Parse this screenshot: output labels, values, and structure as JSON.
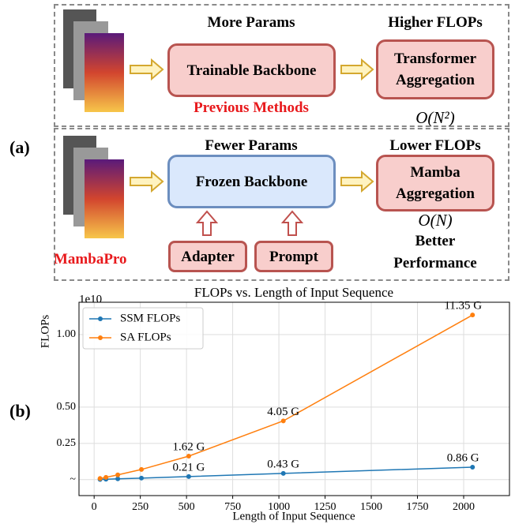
{
  "figure": {
    "panel_a": {
      "label": "(a)",
      "top": {
        "header_left": "More Params",
        "header_right": "Higher FLOPs",
        "backbone": "Trainable Backbone",
        "aggregation": "Transformer Aggregation",
        "caption": "Previous Methods",
        "complexity": "O(N²)"
      },
      "bottom": {
        "header_left": "Fewer Params",
        "header_right": "Lower FLOPs",
        "backbone": "Frozen Backbone",
        "aggregation": "Mamba Aggregation",
        "complexity": "O(N)",
        "note": "Better Performance",
        "adapter": "Adapter",
        "prompt": "Prompt",
        "name": "MambaPro"
      }
    },
    "panel_b": {
      "label": "(b)"
    }
  },
  "chart_data": {
    "type": "line",
    "title": "FLOPs vs. Length of Input Sequence",
    "x_label": "Length of Input Sequence",
    "y_label": "FLOPs",
    "y_multiplier": "1e10",
    "x": [
      32,
      64,
      128,
      256,
      512,
      1024,
      2048
    ],
    "series": [
      {
        "name": "SSM FLOPs",
        "color": "#1f77b4",
        "values": [
          13500000,
          27000000,
          54000000,
          107000000,
          210000000,
          430000000,
          860000000
        ],
        "value_labels": [
          null,
          null,
          null,
          null,
          "0.21 G",
          "0.43 G",
          "0.86 G"
        ]
      },
      {
        "name": "SA FLOPs",
        "color": "#ff7f0e",
        "values": [
          80000000,
          160000000,
          330000000,
          700000000,
          1620000000,
          4050000000,
          11350000000
        ],
        "value_labels": [
          null,
          null,
          null,
          null,
          "1.62 G",
          "4.05 G",
          "11.35 G"
        ]
      }
    ],
    "xlim": [
      -82,
      2248
    ],
    "xticks": [
      0,
      250,
      500,
      750,
      1000,
      1250,
      1500,
      1750,
      2000
    ],
    "ylim": [
      -1100000000,
      12230000000
    ],
    "yticks": [
      {
        "value": 0,
        "label": "~"
      },
      {
        "value": 2500000000,
        "label": "0.25"
      },
      {
        "value": 5000000000,
        "label": "0.50"
      },
      {
        "value": 10000000000,
        "label": "1.00"
      }
    ],
    "grid": true,
    "legend": "upper-left"
  }
}
